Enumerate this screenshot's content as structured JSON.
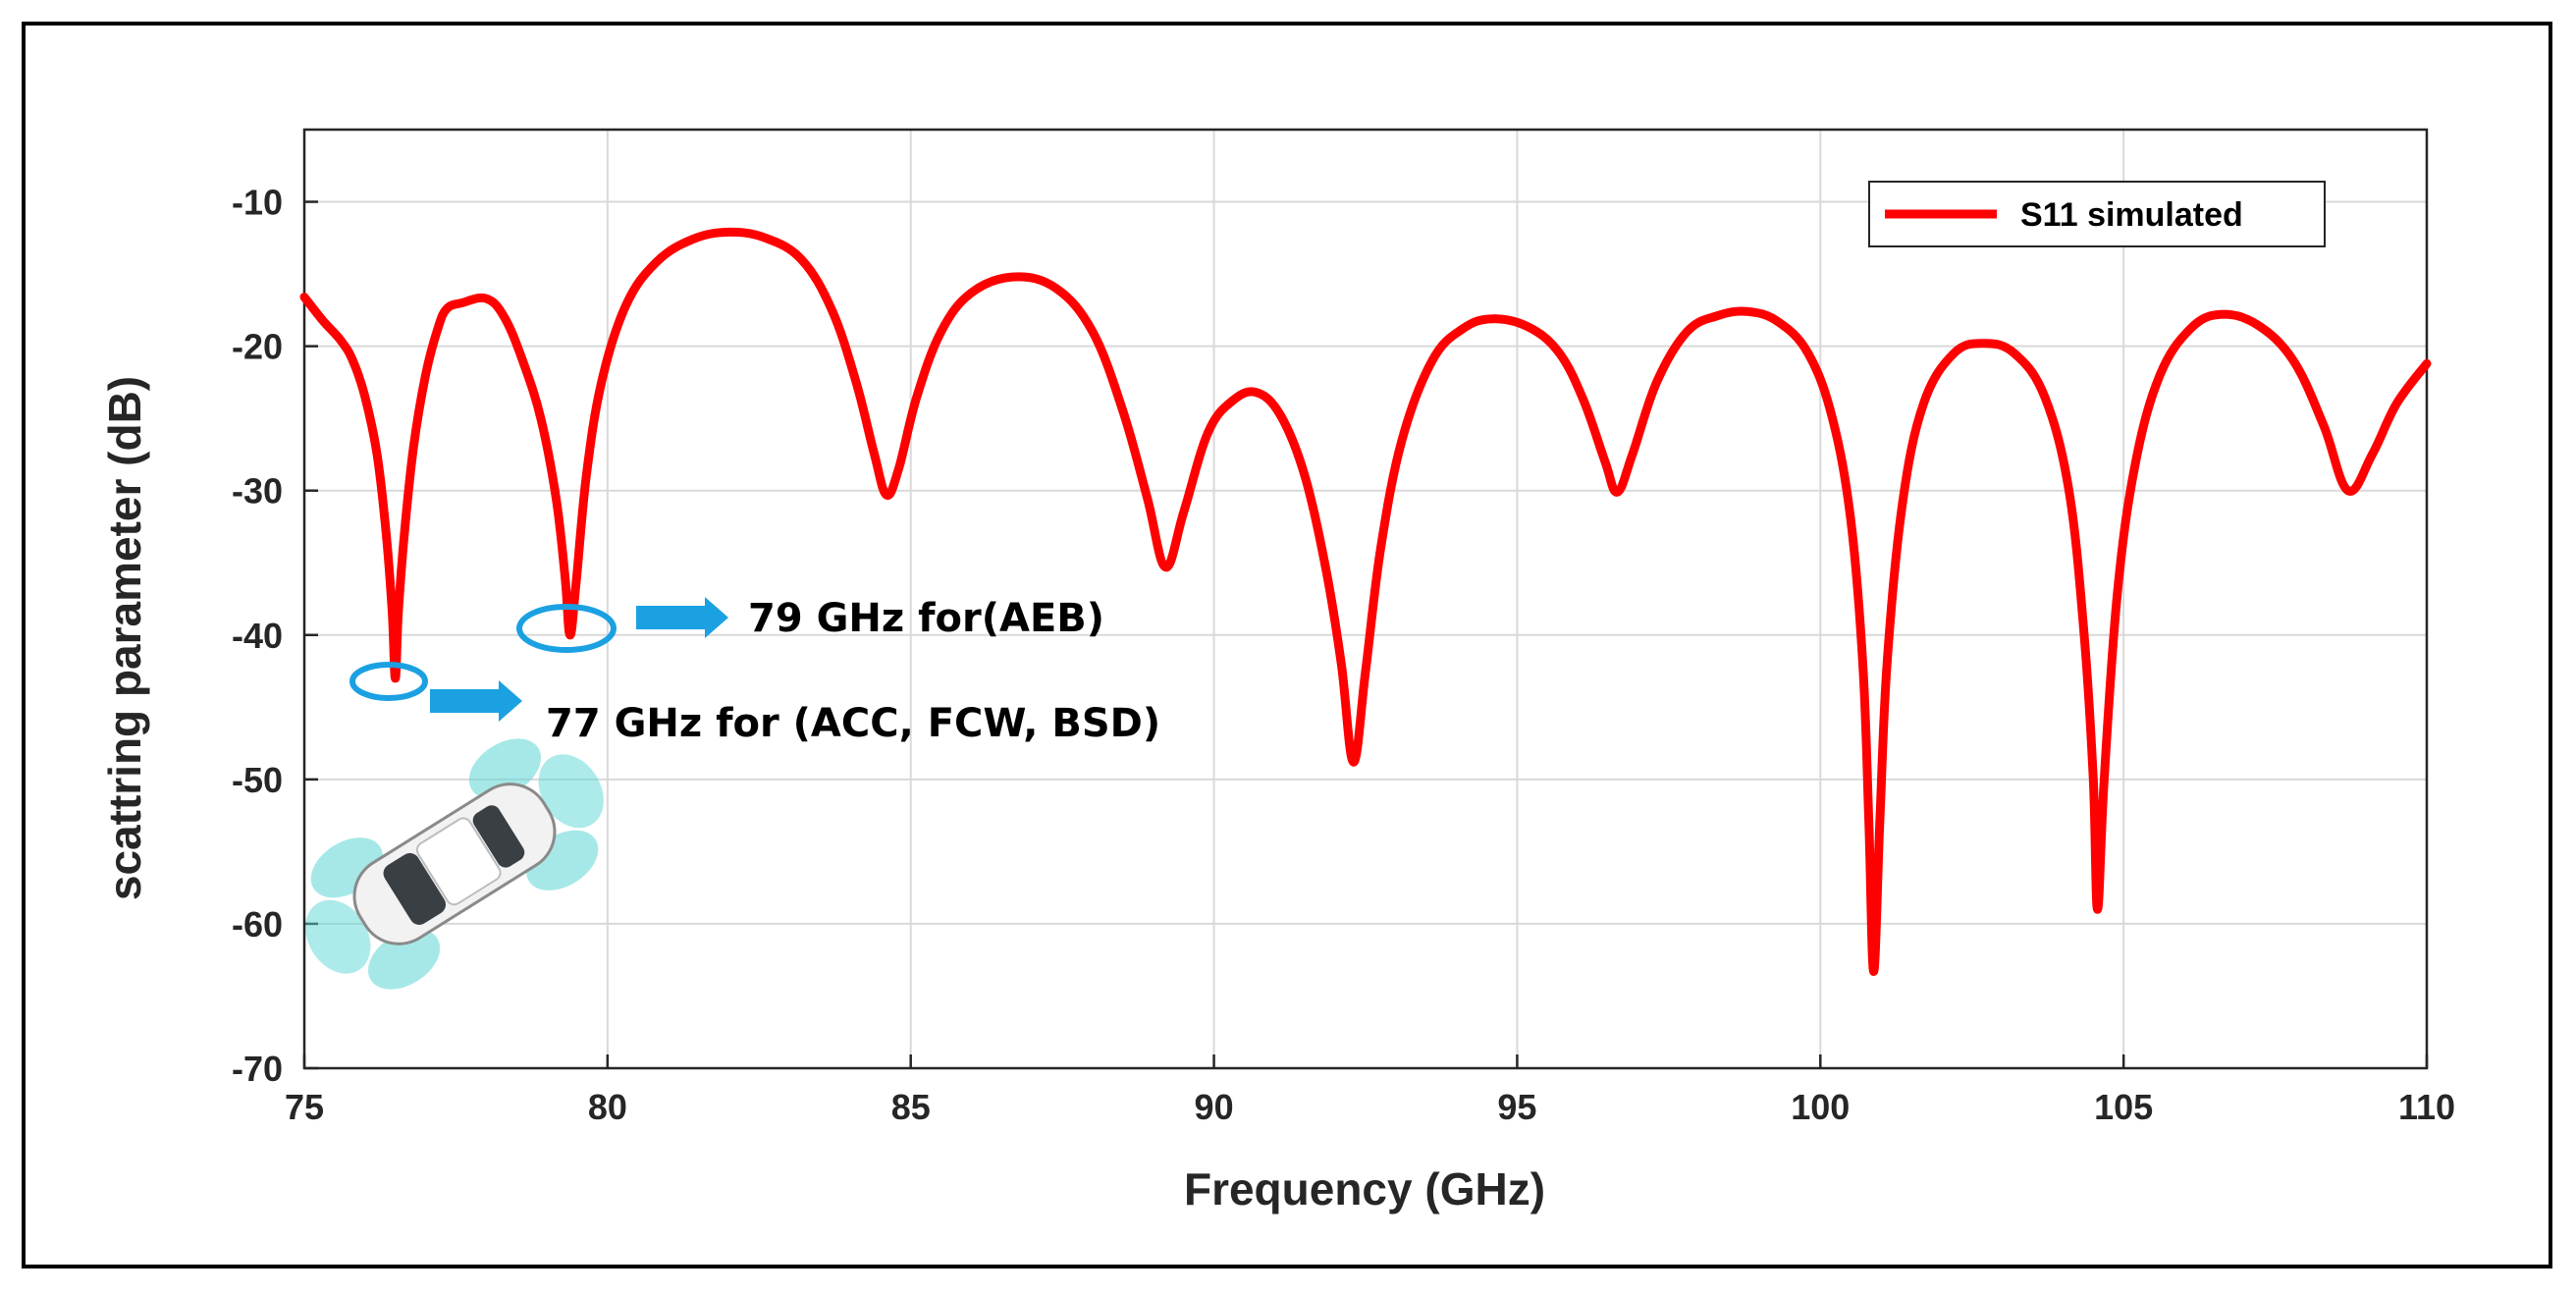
{
  "chart_data": {
    "type": "line",
    "title": "",
    "xlabel": "Frequency (GHz)",
    "ylabel": "scattring parameter (dB)",
    "xlim": [
      75,
      110
    ],
    "ylim": [
      -70,
      -5
    ],
    "xticks": [
      75,
      80,
      85,
      90,
      95,
      100,
      105,
      110
    ],
    "yticks": [
      -10,
      -20,
      -30,
      -40,
      -50,
      -60,
      -70
    ],
    "grid": true,
    "legend_position": "top-right",
    "series": [
      {
        "name": "S11 simulated",
        "color": "#ff0000",
        "points": [
          [
            75.0,
            -16.6
          ],
          [
            75.3,
            -18.2
          ],
          [
            75.6,
            -19.6
          ],
          [
            75.8,
            -21.0
          ],
          [
            76.0,
            -23.5
          ],
          [
            76.2,
            -27.5
          ],
          [
            76.35,
            -33.0
          ],
          [
            76.45,
            -38.5
          ],
          [
            76.5,
            -43.0
          ],
          [
            76.55,
            -38.5
          ],
          [
            76.65,
            -33.0
          ],
          [
            76.8,
            -27.0
          ],
          [
            77.0,
            -22.0
          ],
          [
            77.2,
            -18.8
          ],
          [
            77.35,
            -17.4
          ],
          [
            77.6,
            -17.0
          ],
          [
            78.0,
            -16.7
          ],
          [
            78.3,
            -18.0
          ],
          [
            78.6,
            -21.0
          ],
          [
            78.9,
            -25.0
          ],
          [
            79.15,
            -30.5
          ],
          [
            79.3,
            -36.0
          ],
          [
            79.38,
            -40.0
          ],
          [
            79.48,
            -36.5
          ],
          [
            79.65,
            -29.0
          ],
          [
            79.9,
            -22.5
          ],
          [
            80.3,
            -17.2
          ],
          [
            80.8,
            -14.2
          ],
          [
            81.4,
            -12.6
          ],
          [
            82.0,
            -12.1
          ],
          [
            82.6,
            -12.5
          ],
          [
            83.2,
            -14.0
          ],
          [
            83.7,
            -17.5
          ],
          [
            84.1,
            -22.5
          ],
          [
            84.4,
            -27.5
          ],
          [
            84.6,
            -30.3
          ],
          [
            84.8,
            -28.5
          ],
          [
            85.1,
            -23.5
          ],
          [
            85.5,
            -19.0
          ],
          [
            86.0,
            -16.3
          ],
          [
            86.7,
            -15.2
          ],
          [
            87.4,
            -16.0
          ],
          [
            88.0,
            -19.0
          ],
          [
            88.5,
            -24.5
          ],
          [
            88.9,
            -30.5
          ],
          [
            89.2,
            -35.3
          ],
          [
            89.5,
            -31.5
          ],
          [
            89.9,
            -26.0
          ],
          [
            90.3,
            -23.8
          ],
          [
            90.7,
            -23.2
          ],
          [
            91.1,
            -24.8
          ],
          [
            91.5,
            -29.0
          ],
          [
            91.85,
            -35.5
          ],
          [
            92.1,
            -42.0
          ],
          [
            92.3,
            -48.8
          ],
          [
            92.5,
            -42.5
          ],
          [
            92.75,
            -34.0
          ],
          [
            93.1,
            -26.5
          ],
          [
            93.6,
            -21.0
          ],
          [
            94.1,
            -18.8
          ],
          [
            94.6,
            -18.1
          ],
          [
            95.2,
            -18.7
          ],
          [
            95.7,
            -20.5
          ],
          [
            96.1,
            -23.8
          ],
          [
            96.45,
            -28.0
          ],
          [
            96.65,
            -30.1
          ],
          [
            96.9,
            -27.5
          ],
          [
            97.3,
            -22.5
          ],
          [
            97.8,
            -19.0
          ],
          [
            98.3,
            -17.9
          ],
          [
            98.8,
            -17.6
          ],
          [
            99.3,
            -18.3
          ],
          [
            99.8,
            -20.5
          ],
          [
            100.2,
            -25.0
          ],
          [
            100.5,
            -32.0
          ],
          [
            100.7,
            -42.0
          ],
          [
            100.8,
            -53.0
          ],
          [
            100.88,
            -63.3
          ],
          [
            100.98,
            -53.0
          ],
          [
            101.1,
            -42.0
          ],
          [
            101.35,
            -31.0
          ],
          [
            101.7,
            -24.0
          ],
          [
            102.2,
            -20.5
          ],
          [
            102.7,
            -19.8
          ],
          [
            103.2,
            -20.5
          ],
          [
            103.7,
            -23.5
          ],
          [
            104.1,
            -30.0
          ],
          [
            104.35,
            -40.0
          ],
          [
            104.5,
            -50.0
          ],
          [
            104.57,
            -59.0
          ],
          [
            104.68,
            -50.0
          ],
          [
            104.9,
            -37.0
          ],
          [
            105.2,
            -28.0
          ],
          [
            105.6,
            -22.0
          ],
          [
            106.1,
            -18.8
          ],
          [
            106.6,
            -17.8
          ],
          [
            107.2,
            -18.5
          ],
          [
            107.8,
            -21.0
          ],
          [
            108.3,
            -25.5
          ],
          [
            108.7,
            -30.0
          ],
          [
            109.1,
            -27.5
          ],
          [
            109.5,
            -24.0
          ],
          [
            110.0,
            -21.2
          ]
        ]
      }
    ],
    "annotations": [
      {
        "text": "79 GHz for(AEB)",
        "x": 79.4,
        "y": -40.0
      },
      {
        "text": "77 GHz for (ACC, FCW, BSD)",
        "x": 76.5,
        "y": -43.0
      }
    ],
    "accent_colors": {
      "curve": "#ff0000",
      "marker": "#1ba1e2",
      "grid": "#d9d9d9"
    }
  }
}
